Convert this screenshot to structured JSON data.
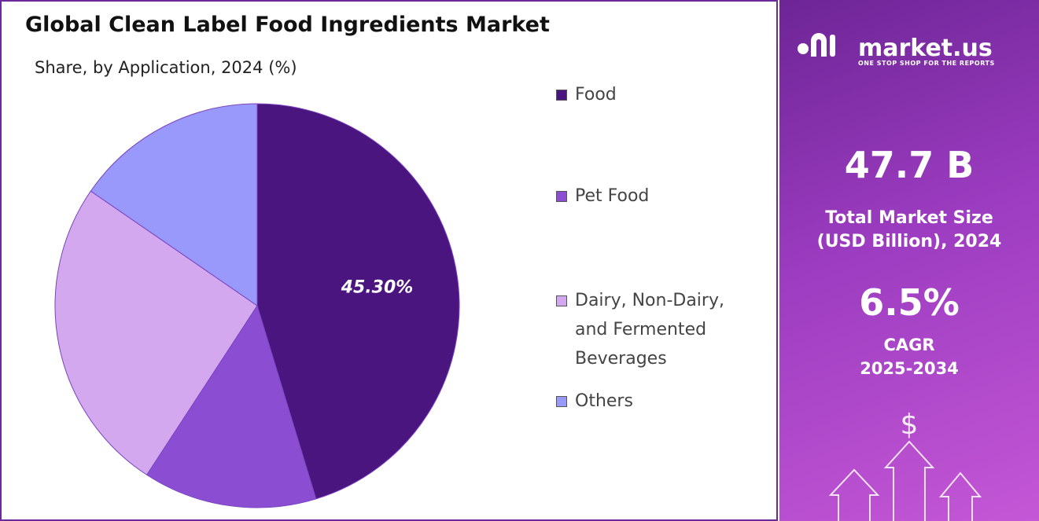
{
  "chart_data": {
    "type": "pie",
    "title": "Global Clean Label Food Ingredients Market",
    "subtitle": "Share, by Application, 2024 (%)",
    "categories": [
      "Food",
      "Pet Food",
      "Dairy, Non-Dairy, and Fermented Beverages",
      "Others"
    ],
    "values": [
      45.3,
      13.9,
      25.4,
      15.4
    ],
    "value_labels": [
      "45.30%",
      null,
      null,
      null
    ],
    "colors": [
      "#4b1580",
      "#8b4ed2",
      "#d3a8ef",
      "#9999fb"
    ]
  },
  "panel": {
    "brand": "market.us",
    "tagline": "ONE STOP SHOP FOR THE REPORTS",
    "market_size": "47.7 B",
    "market_size_label": [
      "Total Market Size",
      "(USD Billion), 2024"
    ],
    "cagr": "6.5%",
    "cagr_label": [
      "CAGR",
      "2025-2034"
    ],
    "icon": "$"
  }
}
